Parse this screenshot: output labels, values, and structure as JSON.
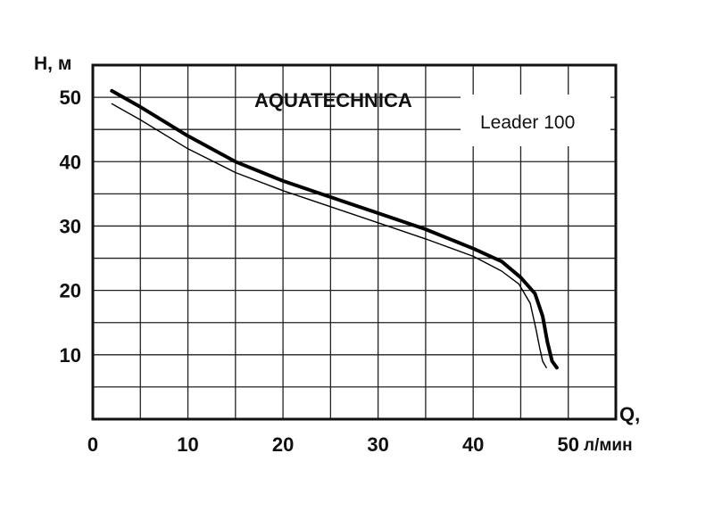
{
  "chart_data": {
    "type": "line",
    "title": "AQUATECHNICA",
    "model_label": "Leader 100",
    "ylabel": "H, м",
    "xlabel_top": "Q,",
    "xlabel_unit": "л/мин",
    "xlim": [
      0,
      55
    ],
    "ylim": [
      0,
      55
    ],
    "x_ticks": [
      0,
      10,
      20,
      30,
      40,
      50
    ],
    "y_ticks": [
      10,
      20,
      30,
      40,
      50
    ],
    "grid": true,
    "series": [
      {
        "style": "thick",
        "color": "#000000",
        "x": [
          2,
          5,
          10,
          15,
          20,
          25,
          30,
          35,
          40,
          43,
          45,
          46.5,
          47.3,
          47.8,
          48.3,
          48.8
        ],
        "y": [
          51,
          48.5,
          44,
          40,
          37,
          34.5,
          32,
          29.5,
          26.5,
          24.5,
          22,
          19.5,
          16,
          12,
          9,
          8
        ]
      },
      {
        "style": "thin",
        "color": "#000000",
        "x": [
          2,
          5,
          10,
          15,
          20,
          25,
          30,
          35,
          40,
          43,
          44.8,
          46,
          46.6,
          47,
          47.3,
          47.7
        ],
        "y": [
          49,
          46.5,
          42,
          38.3,
          35.5,
          33,
          30.5,
          28,
          25.3,
          23,
          21,
          18,
          14,
          11,
          9,
          8
        ]
      }
    ]
  }
}
